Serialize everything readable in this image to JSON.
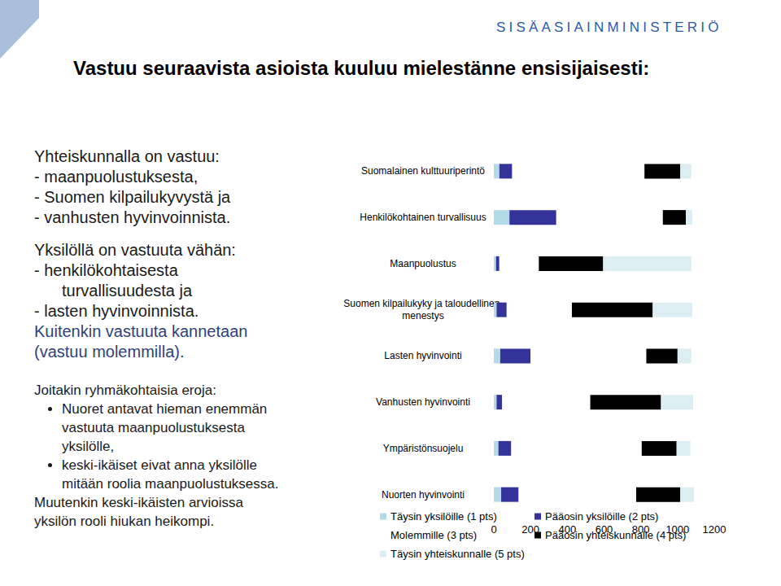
{
  "page": {
    "header": "SISÄASIAINMINISTERIÖ",
    "title": "Vastuu seuraavista asioista kuuluu mielestänne ensisijaisesti:",
    "text_blocks": [
      {
        "heading": "Yhteiskunnalla on vastuu:",
        "items": [
          "- maanpuolustuksesta,",
          "- Suomen kilpailukyvystä  ja",
          "- vanhusten hyvinvoinnista."
        ]
      },
      {
        "heading": "Yksilöllä on vastuuta vähän:",
        "items": [
          "- henkilökohtaisesta turvallisuudesta ja",
          "- lasten hyvinvoinnista."
        ],
        "footer": "Kuitenkin vastuuta kannetaan (vastuu molemmilla)."
      },
      {
        "heading": "Joitakin ryhmäkohtaisia eroja:",
        "bullets": [
          "Nuoret antavat hieman enemmän vastuuta maanpuolustuksesta yksilölle,",
          "keski-ikäiset eivat anna yksilölle mitään roolia maanpuolustuksessa."
        ],
        "footer": "Muutenkin keski-ikäisten arvioissa yksilön rooli hiukan heikompi."
      }
    ]
  },
  "chart_data": {
    "type": "bar",
    "orientation": "horizontal",
    "stacked": true,
    "grid": false,
    "categories": [
      "Suomalainen kulttuuriperintö",
      "Henkilökohtainen turvallisuus",
      "Maanpuolustus",
      "Suomen kilpailukyky ja taloudellinen menestys",
      "Lasten hyvinvointi",
      "Vanhusten hyvinvointi",
      "Ympäristönsuojelu",
      "Nuorten hyvinvointi"
    ],
    "series": [
      {
        "name": "Täysin yksilöille (1 pts)",
        "color": "#b3dbe7",
        "values": [
          30,
          85,
          12,
          15,
          35,
          15,
          25,
          40
        ]
      },
      {
        "name": "Pääosin yksilöille (2 pts)",
        "color": "#333399",
        "values": [
          70,
          255,
          18,
          55,
          165,
          30,
          70,
          95
        ]
      },
      {
        "name": "Molemmille (3 pts)",
        "color": "#ffffff",
        "values": [
          720,
          580,
          215,
          355,
          630,
          480,
          710,
          640
        ]
      },
      {
        "name": "Pääosin yhteiskunnalle (4 pts)",
        "color": "#000000",
        "values": [
          195,
          125,
          350,
          440,
          170,
          385,
          190,
          240
        ]
      },
      {
        "name": "Täysin yhteiskunnalle (5 pts)",
        "color": "#dceef4",
        "values": [
          60,
          35,
          480,
          215,
          75,
          175,
          75,
          75
        ]
      }
    ],
    "xlim": [
      0,
      1200
    ],
    "xticks": [
      0,
      200,
      400,
      600,
      800,
      1000,
      1200
    ]
  }
}
